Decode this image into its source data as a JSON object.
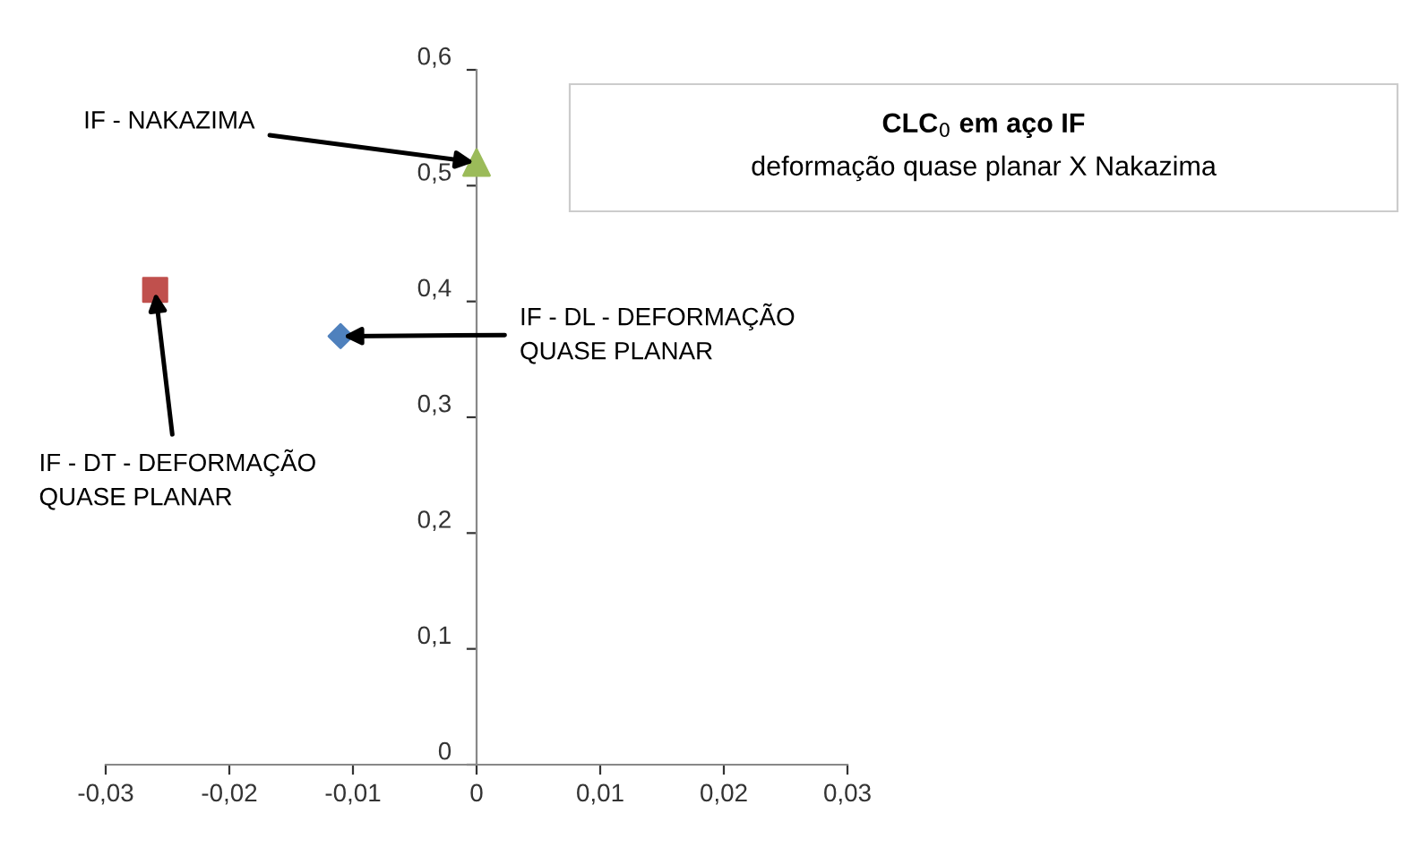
{
  "chart_data": {
    "type": "scatter",
    "title": "CLC$_{0}$ em aço IF",
    "subtitle": "deformação quase planar X Nakazima",
    "series": [
      {
        "x": [
          -0.026
        ],
        "values": [
          0.41
        ],
        "color": "#c0504d",
        "marker": "square"
      },
      {
        "x": [
          -0.011
        ],
        "values": [
          0.37
        ],
        "color": "#4f81bd",
        "marker": "diamond"
      },
      {
        "x": [
          0
        ],
        "values": [
          0.52
        ],
        "color": "#9bbb59",
        "marker": "triangle"
      }
    ],
    "annotations": [
      {
        "text": "IF - DT - DEFORMAÇÃO\nQUASE PLANAR",
        "x": -0.026,
        "y": 0.41
      },
      {
        "text": "IF - DL - DEFORMAÇÃO\nQUASE PLANAR",
        "x": -0.011,
        "y": 0.37
      },
      {
        "text": "IF - NAKAZIMA",
        "x": 0,
        "y": 0.52
      }
    ],
    "xlim": [
      -0.03,
      0.03
    ],
    "ylim": [
      0,
      0.6
    ],
    "xticks": [
      {
        "value": -0.03,
        "label": "-0,03"
      },
      {
        "value": -0.02,
        "label": "-0,02"
      },
      {
        "value": -0.01,
        "label": "-0,01"
      },
      0,
      {
        "value": 0.01,
        "label": "0,01"
      },
      {
        "value": 0.02,
        "label": "0,02"
      },
      {
        "value": 0.03,
        "label": "0,03"
      }
    ],
    "yticks": [
      0,
      {
        "value": 0.1,
        "label": "0,1"
      },
      {
        "value": 0.2,
        "label": "0,2"
      },
      {
        "value": 0.3,
        "label": "0,3"
      },
      {
        "value": 0.4,
        "label": "0,4"
      },
      {
        "value": 0.5,
        "label": "0,5"
      },
      {
        "value": 0.6,
        "label": "0,6"
      }
    ],
    "grid": false,
    "legend": false
  }
}
